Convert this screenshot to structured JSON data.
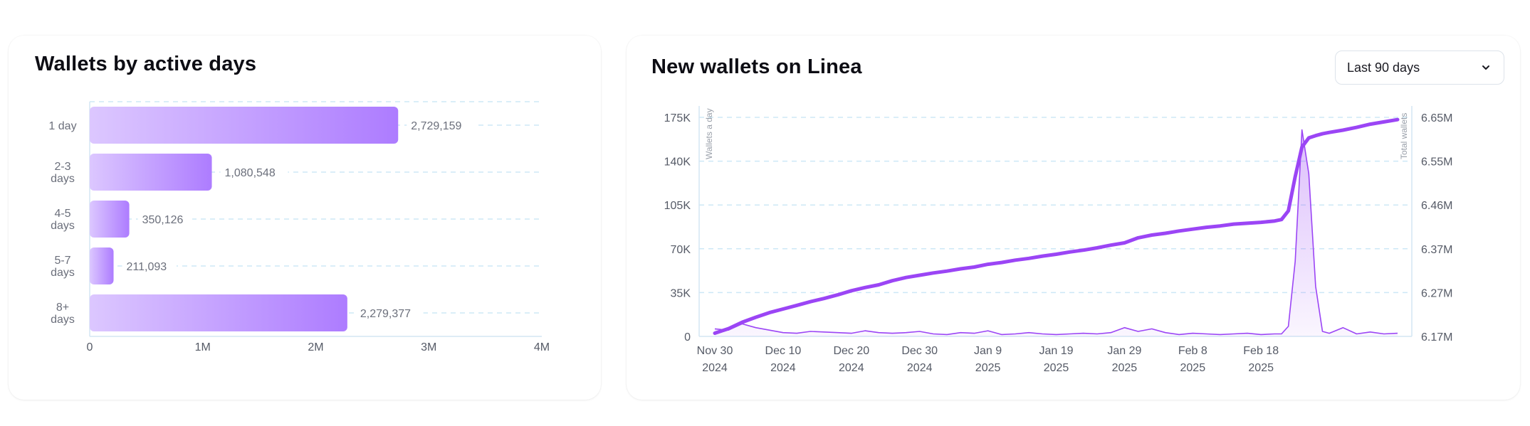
{
  "left_card": {
    "title": "Wallets by active days"
  },
  "right_card": {
    "title": "New wallets on Linea",
    "dropdown": {
      "selected": "Last 90 days"
    }
  },
  "colors": {
    "bar_start": "#dcc7ff",
    "bar_end": "#ad7cff",
    "line_total": "#9b45f5",
    "line_daily": "#9b45f5",
    "grid": "#cde8f6",
    "axis_text": "#555a66"
  },
  "chart_data": [
    {
      "type": "bar",
      "orientation": "horizontal",
      "title": "Wallets by active days",
      "categories": [
        [
          "1 day"
        ],
        [
          "2-3",
          "days"
        ],
        [
          "4-5",
          "days"
        ],
        [
          "5-7",
          "days"
        ],
        [
          "8+",
          "days"
        ]
      ],
      "values": [
        2729159,
        1080548,
        350126,
        211093,
        2279377
      ],
      "value_labels": [
        "2,729,159",
        "1,080,548",
        "350,126",
        "211,093",
        "2,279,377"
      ],
      "xlim": [
        0,
        4000000
      ],
      "xticks": [
        "0",
        "1M",
        "2M",
        "3M",
        "4M"
      ],
      "grid": true
    },
    {
      "type": "line",
      "title": "New wallets on Linea",
      "ylabel_left": "Wallets a day",
      "ylabel_right": "Total wallets",
      "xticks": [
        {
          "line1": "Nov 30",
          "line2": "2024"
        },
        {
          "line1": "Dec 10",
          "line2": "2024"
        },
        {
          "line1": "Dec 20",
          "line2": "2024"
        },
        {
          "line1": "Dec 30",
          "line2": "2024"
        },
        {
          "line1": "Jan 9",
          "line2": "2025"
        },
        {
          "line1": "Jan 19",
          "line2": "2025"
        },
        {
          "line1": "Jan 29",
          "line2": "2025"
        },
        {
          "line1": "Feb 8",
          "line2": "2025"
        },
        {
          "line1": "Feb 18",
          "line2": "2025"
        }
      ],
      "ylim_left": [
        0,
        175000
      ],
      "yticks_left": [
        "0",
        "35K",
        "70K",
        "105K",
        "140K",
        "175K"
      ],
      "ylim_right": [
        6170000,
        6650000
      ],
      "yticks_right": [
        "6.17M",
        "6.27M",
        "6.37M",
        "6.46M",
        "6.55M",
        "6.65M"
      ],
      "x_days": [
        0,
        2,
        4,
        6,
        8,
        10,
        12,
        14,
        16,
        18,
        20,
        22,
        24,
        26,
        28,
        30,
        32,
        34,
        36,
        38,
        40,
        42,
        44,
        46,
        48,
        50,
        52,
        54,
        56,
        58,
        60,
        62,
        64,
        66,
        68,
        70,
        72,
        74,
        76,
        78,
        80,
        82,
        83,
        84,
        85,
        86,
        87,
        88,
        89,
        90,
        92,
        94,
        96,
        98,
        100
      ],
      "series": [
        {
          "name": "Total wallets",
          "values": [
            6177000,
            6187000,
            6201000,
            6212000,
            6222000,
            6230000,
            6238000,
            6246000,
            6253000,
            6261000,
            6270000,
            6277000,
            6283000,
            6292000,
            6299000,
            6304000,
            6309000,
            6313000,
            6318000,
            6322000,
            6328000,
            6332000,
            6337000,
            6341000,
            6346000,
            6350000,
            6355000,
            6359000,
            6364000,
            6370000,
            6375000,
            6386000,
            6392000,
            6396000,
            6401000,
            6405000,
            6409000,
            6412000,
            6416000,
            6418000,
            6420000,
            6423000,
            6426000,
            6445000,
            6520000,
            6585000,
            6605000,
            6610000,
            6614000,
            6617000,
            6622000,
            6628000,
            6635000,
            6640000,
            6645000
          ]
        },
        {
          "name": "Wallets a day",
          "values": [
            6000,
            5000,
            10000,
            7000,
            5000,
            3000,
            2500,
            4000,
            3500,
            3000,
            2500,
            4500,
            3000,
            2500,
            3000,
            4000,
            2000,
            1500,
            3000,
            2500,
            4500,
            1500,
            2000,
            3000,
            2000,
            1500,
            2000,
            2500,
            2000,
            3000,
            7000,
            4000,
            6000,
            3000,
            1500,
            2500,
            2000,
            1500,
            2000,
            2500,
            1500,
            2000,
            2000,
            8000,
            60000,
            165000,
            130000,
            40000,
            4000,
            2500,
            7000,
            2000,
            3500,
            2000,
            2500
          ]
        }
      ],
      "grid": true
    }
  ]
}
